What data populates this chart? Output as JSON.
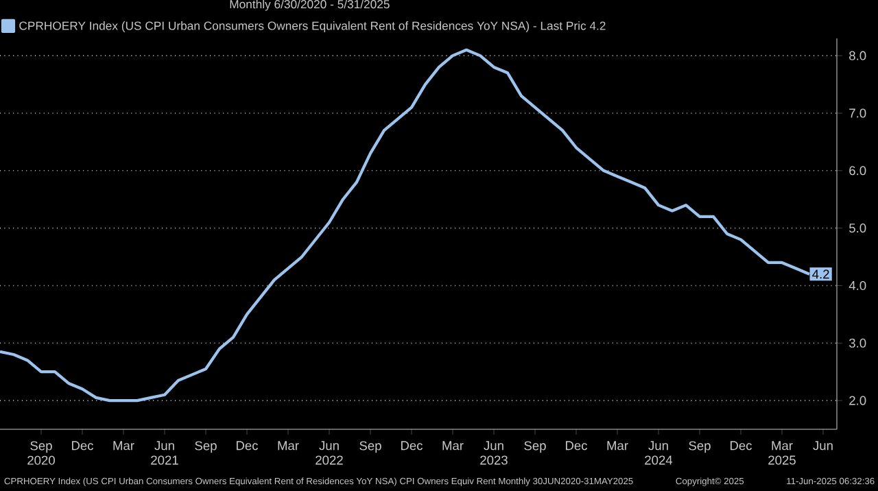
{
  "chart_data": {
    "type": "line",
    "title": "Monthly 6/30/2020 - 5/31/2025",
    "x": [
      "2020-06",
      "2020-07",
      "2020-08",
      "2020-09",
      "2020-10",
      "2020-11",
      "2020-12",
      "2021-01",
      "2021-02",
      "2021-03",
      "2021-04",
      "2021-05",
      "2021-06",
      "2021-07",
      "2021-08",
      "2021-09",
      "2021-10",
      "2021-11",
      "2021-12",
      "2022-01",
      "2022-02",
      "2022-03",
      "2022-04",
      "2022-05",
      "2022-06",
      "2022-07",
      "2022-08",
      "2022-09",
      "2022-10",
      "2022-11",
      "2022-12",
      "2023-01",
      "2023-02",
      "2023-03",
      "2023-04",
      "2023-05",
      "2023-06",
      "2023-07",
      "2023-08",
      "2023-09",
      "2023-10",
      "2023-11",
      "2023-12",
      "2024-01",
      "2024-02",
      "2024-03",
      "2024-04",
      "2024-05",
      "2024-06",
      "2024-07",
      "2024-08",
      "2024-09",
      "2024-10",
      "2024-11",
      "2024-12",
      "2025-01",
      "2025-02",
      "2025-03",
      "2025-04",
      "2025-05"
    ],
    "series": [
      {
        "name": "CPRHOERY Index (US CPI Urban Consumers Owners Equivalent Rent of Residences YoY NSA) - Last Pric 4.2",
        "color": "#9cc3ee",
        "values": [
          2.85,
          2.8,
          2.7,
          2.5,
          2.5,
          2.3,
          2.2,
          2.05,
          2.0,
          2.0,
          2.0,
          2.05,
          2.1,
          2.35,
          2.45,
          2.55,
          2.9,
          3.1,
          3.5,
          3.8,
          4.1,
          4.3,
          4.5,
          4.8,
          5.1,
          5.5,
          5.8,
          6.3,
          6.7,
          6.9,
          7.1,
          7.5,
          7.8,
          8.0,
          8.1,
          8.0,
          7.8,
          7.7,
          7.3,
          7.1,
          6.9,
          6.7,
          6.4,
          6.2,
          6.0,
          5.9,
          5.8,
          5.7,
          5.4,
          5.3,
          5.4,
          5.2,
          5.2,
          4.9,
          4.8,
          4.6,
          4.4,
          4.4,
          4.3,
          4.2
        ],
        "value_labels": [
          null,
          null,
          null,
          null,
          null,
          null,
          null,
          null,
          null,
          null,
          null,
          null,
          null,
          null,
          null,
          null,
          null,
          null,
          null,
          null,
          null,
          null,
          null,
          null,
          null,
          null,
          null,
          null,
          null,
          null,
          null,
          null,
          null,
          null,
          null,
          null,
          null,
          null,
          null,
          null,
          null,
          null,
          null,
          null,
          null,
          null,
          null,
          null,
          null,
          null,
          null,
          null,
          null,
          null,
          null,
          null,
          null,
          null,
          null,
          "4.2"
        ]
      }
    ],
    "xlim": [
      "2020-06",
      "2025-07"
    ],
    "xticks": [
      {
        "value": "2020-09",
        "label": "Sep 2020"
      },
      {
        "value": "2020-12",
        "label": "Dec"
      },
      {
        "value": "2021-03",
        "label": "Mar"
      },
      {
        "value": "2021-06",
        "label": "Jun 2021"
      },
      {
        "value": "2021-09",
        "label": "Sep"
      },
      {
        "value": "2021-12",
        "label": "Dec"
      },
      {
        "value": "2022-03",
        "label": "Mar"
      },
      {
        "value": "2022-06",
        "label": "Jun 2022"
      },
      {
        "value": "2022-09",
        "label": "Sep"
      },
      {
        "value": "2022-12",
        "label": "Dec"
      },
      {
        "value": "2023-03",
        "label": "Mar"
      },
      {
        "value": "2023-06",
        "label": "Jun 2023"
      },
      {
        "value": "2023-09",
        "label": "Sep"
      },
      {
        "value": "2023-12",
        "label": "Dec"
      },
      {
        "value": "2024-03",
        "label": "Mar"
      },
      {
        "value": "2024-06",
        "label": "Jun 2024"
      },
      {
        "value": "2024-09",
        "label": "Sep"
      },
      {
        "value": "2024-12",
        "label": "Dec"
      },
      {
        "value": "2025-03",
        "label": "Mar 2025"
      },
      {
        "value": "2025-06",
        "label": "Jun"
      }
    ],
    "ylim": [
      1.5,
      8.3
    ],
    "yticks": [
      {
        "value": 2,
        "label": "2.0"
      },
      {
        "value": 3,
        "label": "3.0"
      },
      {
        "value": 4,
        "label": "4.0"
      },
      {
        "value": 5,
        "label": "5.0"
      },
      {
        "value": 6,
        "label": "6.0"
      },
      {
        "value": 7,
        "label": "7.0"
      },
      {
        "value": 8,
        "label": "8.0"
      }
    ],
    "grid": "y",
    "legend": "top left",
    "annotations": [
      "CPRHOERY Index (US CPI Urban Consumers Owners Equivalent Rent of Residences YoY NSA) CPI Owners Equiv Rent  Monthly 30JUN2020-31MAY2025",
      "Copyright© 2025",
      "11-Jun-2025 06:32:36"
    ]
  }
}
